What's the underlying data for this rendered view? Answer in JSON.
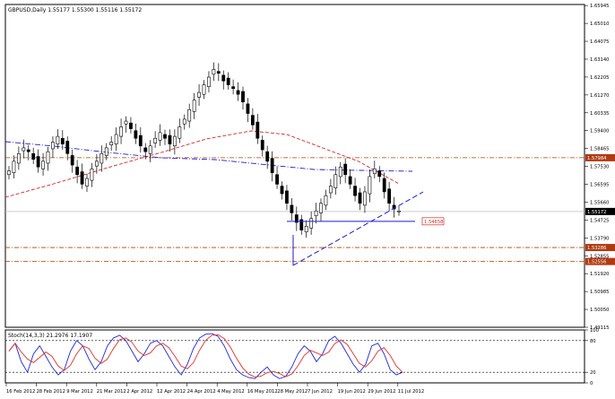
{
  "header": {
    "symbol_line": "GBPUSD,Daily  1.55177 1.55300 1.55116 1.55172"
  },
  "main_chart": {
    "price_labels": [
      "1.65945",
      "1.65010",
      "1.64075",
      "1.63140",
      "1.62205",
      "1.61270",
      "1.60335",
      "1.59400",
      "1.58465",
      "1.57530",
      "1.56595",
      "1.55660",
      "1.54725",
      "1.53790",
      "1.52855",
      "1.51920",
      "1.50985",
      "1.50050",
      "1.49115"
    ],
    "price_range": [
      1.49115,
      1.66
    ],
    "current_price_tag": "1.55172",
    "level_tags": [
      "1.57984",
      "1.54658",
      "1.53286",
      "1.52556"
    ],
    "level_prices": [
      1.57984,
      1.54658,
      1.53286,
      1.52556
    ]
  },
  "indicator": {
    "title": "Stoch(14,3,3) 21.2976 17.1907",
    "labels": [
      "100",
      "80",
      "20",
      "0"
    ]
  },
  "x_axis": {
    "labels": [
      "16 Feb 2012",
      "28 Feb 2012",
      "9 Mar 2012",
      "21 Mar 2012",
      "2 Apr 2012",
      "12 Apr 2012",
      "24 Apr 2012",
      "4 May 2012",
      "16 May 2012",
      "28 May 2012",
      "7 Jun 2012",
      "19 Jun 2012",
      "29 Jun 2012",
      "11 Jul 2012"
    ]
  },
  "colors": {
    "bull_candle": "#ffffff",
    "bear_candle": "#000000",
    "level_line": "#b04000",
    "tag_fill": "#b03a10",
    "blue_line": "#1b1bd6",
    "red_curve": "#d42a2a",
    "stoch_main": "#1e2ad8",
    "stoch_signal": "#e0322a"
  }
}
